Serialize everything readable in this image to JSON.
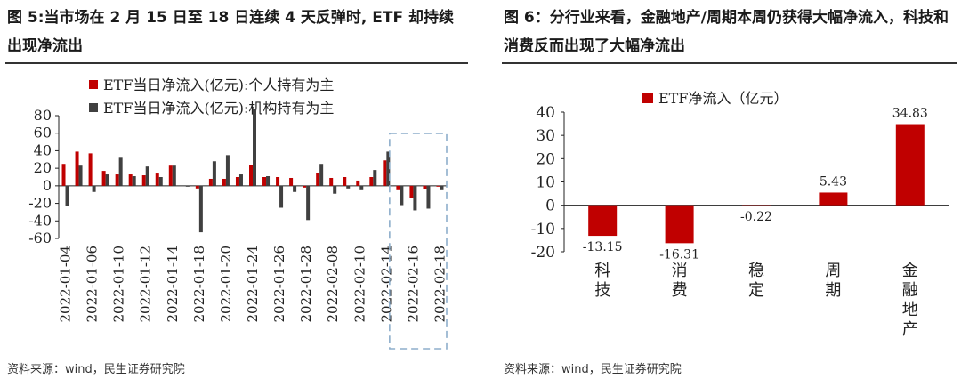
{
  "left_panel": {
    "title": "图 5:当市场在 2 月 15 日至 18 日连续 4 天反弹时, ETF 却持续出现净流出",
    "source": "资料来源：wind，民生证券研究院"
  },
  "right_panel": {
    "title": "图 6：分行业来看，金融地产/周期本周仍获得大幅净流入，科技和消费反而出现了大幅净流出",
    "source": "资料来源：wind，民生证券研究院"
  },
  "colors": {
    "red": "#c00000",
    "gray": "#404040",
    "dash": "#8eaecb"
  },
  "chart_data": [
    {
      "type": "bar",
      "ylim": [
        -60,
        80
      ],
      "yticks": [
        80,
        60,
        40,
        20,
        0,
        -20,
        -40,
        -60
      ],
      "legend_position": "top",
      "grid": false,
      "x_tick_labels": [
        "2022-01-04",
        "2022-01-06",
        "2022-01-10",
        "2022-01-12",
        "2022-01-14",
        "2022-01-18",
        "2022-01-20",
        "2022-01-24",
        "2022-01-26",
        "2022-01-28",
        "2022-02-08",
        "2022-02-10",
        "2022-02-14",
        "2022-02-16",
        "2022-02-18"
      ],
      "categories": [
        "2022-01-04",
        "2022-01-05",
        "2022-01-06",
        "2022-01-07",
        "2022-01-10",
        "2022-01-11",
        "2022-01-12",
        "2022-01-13",
        "2022-01-14",
        "2022-01-17",
        "2022-01-18",
        "2022-01-19",
        "2022-01-20",
        "2022-01-21",
        "2022-01-24",
        "2022-01-25",
        "2022-01-26",
        "2022-01-27",
        "2022-01-28",
        "2022-02-07",
        "2022-02-08",
        "2022-02-09",
        "2022-02-10",
        "2022-02-11",
        "2022-02-14",
        "2022-02-15",
        "2022-02-16",
        "2022-02-17",
        "2022-02-18"
      ],
      "series": [
        {
          "name": "ETF当日净流入(亿元):个人持有为主",
          "values": [
            25,
            39,
            37,
            17,
            13,
            13,
            12,
            14,
            23,
            0,
            -3,
            8,
            8,
            10,
            24,
            10,
            10,
            9,
            -2,
            15,
            9,
            10,
            6,
            10,
            29,
            -5,
            -14,
            -4,
            -1
          ]
        },
        {
          "name": "ETF当日净流入(亿元):机构持有为主",
          "values": [
            -23,
            23,
            -7,
            13,
            32,
            11,
            22,
            10,
            23,
            -1,
            -53,
            28,
            35,
            13,
            88,
            11,
            -25,
            -7,
            -39,
            25,
            -9,
            -3,
            -5,
            18,
            39,
            -22,
            -28,
            -26,
            -5
          ]
        }
      ]
    },
    {
      "type": "bar",
      "ylim": [
        -20,
        40
      ],
      "yticks": [
        40,
        30,
        20,
        10,
        0,
        -10,
        -20
      ],
      "legend_position": "top",
      "grid": false,
      "categories": [
        "科技",
        "消费",
        "稳定",
        "周期",
        "金融地产"
      ],
      "series": [
        {
          "name": "ETF净流入（亿元）",
          "values": [
            -13.15,
            -16.31,
            -0.22,
            5.43,
            34.83
          ]
        }
      ],
      "data_labels": [
        "-13.15",
        "-16.31",
        "-0.22",
        "5.43",
        "34.83"
      ]
    }
  ]
}
